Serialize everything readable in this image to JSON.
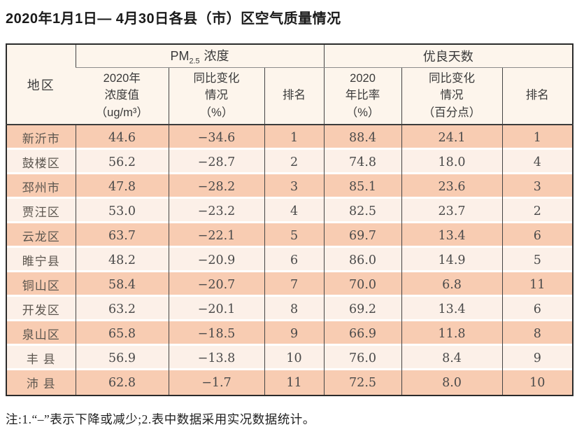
{
  "page": {
    "title": "2020年1月1日— 4月30日各县（市）区空气质量情况",
    "footnote": "注:1.“–”表示下降或减少;2.表中数据采用实况数据统计。"
  },
  "colors": {
    "row_odd": "#f8ccb2",
    "row_even": "#fcf0e8",
    "header_bg": "#fdf5ec",
    "grid_line": "#444444",
    "outer_border": "#2b2b2b"
  },
  "chart_data": {
    "type": "table",
    "title": "2020年1月1日— 4月30日各县（市）区空气质量情况",
    "columns": [
      "地区",
      "PM2.5浓度 2020年浓度值（ug/m³）",
      "PM2.5浓度 同比变化情况（%）",
      "PM2.5浓度 排名",
      "优良天数 2020年比率（%）",
      "优良天数 同比变化情况（百分点）",
      "优良天数 排名"
    ],
    "rows": [
      [
        "新沂市",
        44.6,
        -34.6,
        1,
        88.4,
        24.1,
        1
      ],
      [
        "鼓楼区",
        56.2,
        -28.7,
        2,
        74.8,
        18.0,
        4
      ],
      [
        "邳州市",
        47.8,
        -28.2,
        3,
        85.1,
        23.6,
        3
      ],
      [
        "贾汪区",
        53.0,
        -23.2,
        4,
        82.5,
        23.7,
        2
      ],
      [
        "云龙区",
        63.7,
        -22.1,
        5,
        69.7,
        13.4,
        6
      ],
      [
        "睢宁县",
        48.2,
        -20.9,
        6,
        86.0,
        14.9,
        5
      ],
      [
        "铜山区",
        58.4,
        -20.7,
        7,
        70.0,
        6.8,
        11
      ],
      [
        "开发区",
        63.2,
        -20.1,
        8,
        69.2,
        13.4,
        6
      ],
      [
        "泉山区",
        65.8,
        -18.5,
        9,
        66.9,
        11.8,
        8
      ],
      [
        "丰县",
        56.9,
        -13.8,
        10,
        76.0,
        8.4,
        9
      ],
      [
        "沛县",
        62.8,
        -1.7,
        11,
        72.5,
        8.0,
        10
      ]
    ]
  },
  "table": {
    "region_header": "地区",
    "group_pm25": {
      "prefix": "PM",
      "sub": "2.5",
      "suffix": "浓度"
    },
    "group_good_days": "优良天数",
    "sub_headers": {
      "pm_value": {
        "l1": "2020年",
        "l2": "浓度值",
        "l3": "（ug/m³）"
      },
      "pm_change": {
        "l1": "同比变化",
        "l2": "情况",
        "l3": "（%）"
      },
      "pm_rank": {
        "l1": "排名"
      },
      "good_ratio": {
        "l1": "2020",
        "l2": "年比率",
        "l3": "（%）"
      },
      "good_change": {
        "l1": "同比变化",
        "l2": "情况",
        "l3": "（百分点）"
      },
      "good_rank": {
        "l1": "排名"
      }
    },
    "rows": [
      {
        "cells": [
          "新沂市",
          "44.6",
          "−34.6",
          "1",
          "88.4",
          "24.1",
          "1"
        ]
      },
      {
        "cells": [
          "鼓楼区",
          "56.2",
          "−28.7",
          "2",
          "74.8",
          "18.0",
          "4"
        ]
      },
      {
        "cells": [
          "邳州市",
          "47.8",
          "−28.2",
          "3",
          "85.1",
          "23.6",
          "3"
        ]
      },
      {
        "cells": [
          "贾汪区",
          "53.0",
          "−23.2",
          "4",
          "82.5",
          "23.7",
          "2"
        ]
      },
      {
        "cells": [
          "云龙区",
          "63.7",
          "−22.1",
          "5",
          "69.7",
          "13.4",
          "6"
        ]
      },
      {
        "cells": [
          "睢宁县",
          "48.2",
          "−20.9",
          "6",
          "86.0",
          "14.9",
          "5"
        ]
      },
      {
        "cells": [
          "铜山区",
          "58.4",
          "−20.7",
          "7",
          "70.0",
          "6.8",
          "11"
        ]
      },
      {
        "cells": [
          "开发区",
          "63.2",
          "−20.1",
          "8",
          "69.2",
          "13.4",
          "6"
        ]
      },
      {
        "cells": [
          "泉山区",
          "65.8",
          "−18.5",
          "9",
          "66.9",
          "11.8",
          "8"
        ]
      },
      {
        "cells": [
          "丰 县",
          "56.9",
          "−13.8",
          "10",
          "76.0",
          "8.4",
          "9"
        ]
      },
      {
        "cells": [
          "沛 县",
          "62.8",
          "−1.7",
          "11",
          "72.5",
          "8.0",
          "10"
        ]
      }
    ]
  }
}
